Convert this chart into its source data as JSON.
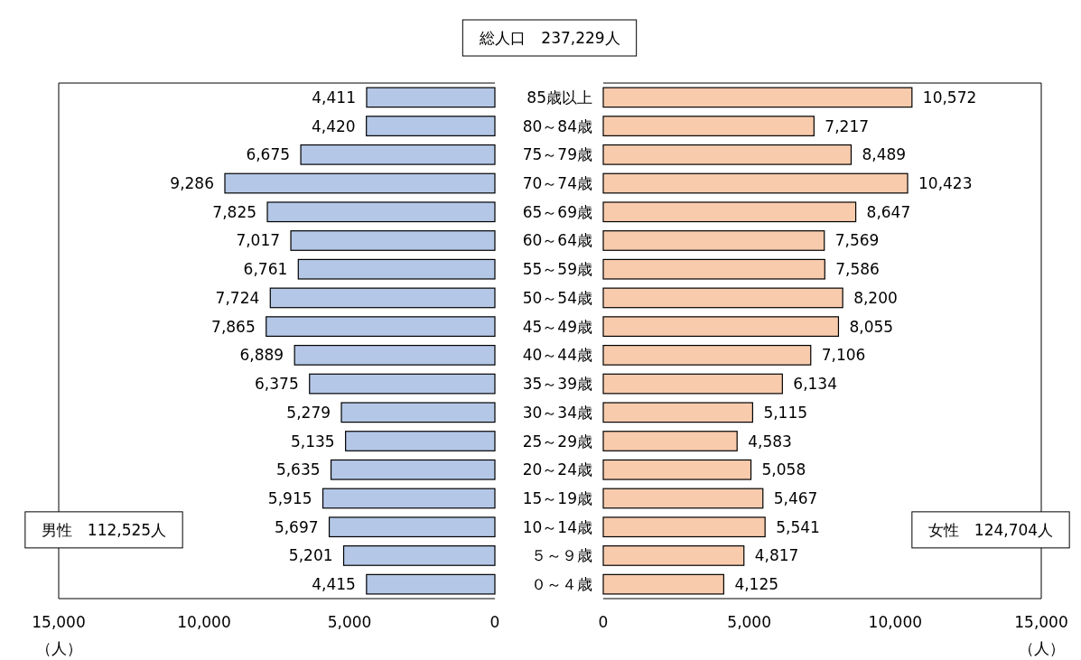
{
  "chart_data": [
    {
      "type": "bar",
      "orientation": "horizontal",
      "title": "総人口　237,229人",
      "categories": [
        "85歳以上",
        "80～84歳",
        "75～79歳",
        "70～74歳",
        "65～69歳",
        "60～64歳",
        "55～59歳",
        "50～54歳",
        "45～49歳",
        "40～44歳",
        "35～39歳",
        "30～34歳",
        "25～29歳",
        "20～24歳",
        "15～19歳",
        "10～14歳",
        "５～９歳",
        "０～４歳"
      ],
      "values": [
        4411,
        4420,
        6675,
        9286,
        7825,
        7017,
        6761,
        7724,
        7865,
        6889,
        6375,
        5279,
        5135,
        5635,
        5915,
        5697,
        5201,
        4415
      ],
      "value_labels": [
        "4,411",
        "4,420",
        "6,675",
        "9,286",
        "7,825",
        "7,017",
        "6,761",
        "7,724",
        "7,865",
        "6,889",
        "6,375",
        "5,279",
        "5,135",
        "5,635",
        "5,915",
        "5,697",
        "5,201",
        "4,415"
      ],
      "color": "#b4c7e7",
      "xlim": [
        15000,
        0
      ],
      "xticks": [
        {
          "value": 15000,
          "label": "15,000"
        },
        {
          "value": 10000,
          "label": "10,000"
        },
        {
          "value": 5000,
          "label": "5,000"
        },
        0
      ],
      "annotations": [
        "男性　112,525人",
        "（人）"
      ]
    },
    {
      "type": "bar",
      "orientation": "horizontal",
      "categories": [
        null,
        null,
        null,
        null,
        null,
        null,
        null,
        null,
        null,
        null,
        null,
        null,
        null,
        null,
        null,
        null,
        null,
        null
      ],
      "values": [
        10572,
        7217,
        8489,
        10423,
        8647,
        7569,
        7586,
        8200,
        8055,
        7106,
        6134,
        5115,
        4583,
        5058,
        5467,
        5541,
        4817,
        4125
      ],
      "value_labels": [
        "10,572",
        "7,217",
        "8,489",
        "10,423",
        "8,647",
        "7,569",
        "7,586",
        "8,200",
        "8,055",
        "7,106",
        "6,134",
        "5,115",
        "4,583",
        "5,058",
        "5,467",
        "5,541",
        "4,817",
        "4,125"
      ],
      "color": "#f8cbad",
      "xlim": [
        0,
        15000
      ],
      "xticks": [
        0,
        {
          "value": 5000,
          "label": "5,000"
        },
        {
          "value": 10000,
          "label": "10,000"
        },
        {
          "value": 15000,
          "label": "15,000"
        }
      ],
      "annotations": [
        "女性　124,704人",
        "（人）"
      ]
    }
  ]
}
